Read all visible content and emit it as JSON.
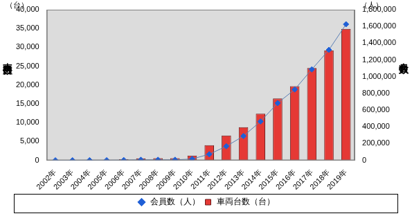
{
  "chart_data": {
    "type": "bar",
    "categories": [
      "2002年",
      "2003年",
      "2004年",
      "2005年",
      "2006年",
      "2007年",
      "2008年",
      "2009年",
      "2010年",
      "2011年",
      "2012年",
      "2013年",
      "2014年",
      "2015年",
      "2016年",
      "2017年",
      "2018年",
      "2019年"
    ],
    "series": [
      {
        "name": "車両台数（台）",
        "type": "bar",
        "color": "#e53935",
        "values": [
          21,
          42,
          86,
          118,
          294,
          510,
          563,
          563,
          1265,
          4000,
          6600,
          8800,
          12400,
          16400,
          19700,
          24500,
          29200,
          34900
        ]
      },
      {
        "name": "会員数（人）",
        "type": "line",
        "axis": "y2",
        "color": "#1f5fd6",
        "marker": "diamond",
        "values": [
          50,
          500,
          1700,
          1600,
          3200,
          6400,
          6400,
          6400,
          16200,
          73000,
          168000,
          290000,
          465000,
          684000,
          847000,
          1087000,
          1320000,
          1626000
        ]
      }
    ],
    "y_label": "車両台数",
    "y2_label": "会員数",
    "y_unit": "（台）",
    "y2_unit": "（人）",
    "ylim": [
      0,
      40000
    ],
    "yticks": [
      0,
      {
        "value": 5000,
        "label": "5,000"
      },
      {
        "value": 10000,
        "label": "10,000"
      },
      {
        "value": 15000,
        "label": "15,000"
      },
      {
        "value": 20000,
        "label": "20,000"
      },
      {
        "value": 25000,
        "label": "25,000"
      },
      {
        "value": 30000,
        "label": "30,000"
      },
      {
        "value": 35000,
        "label": "35,000"
      },
      {
        "value": 40000,
        "label": "40,000"
      }
    ],
    "y2lim": [
      0,
      1800000
    ],
    "y2ticks": [
      0,
      {
        "value": 200000,
        "label": "200,000"
      },
      {
        "value": 400000,
        "label": "400,000"
      },
      {
        "value": 600000,
        "label": "600,000"
      },
      {
        "value": 800000,
        "label": "800,000"
      },
      {
        "value": 1000000,
        "label": "1,000,000"
      },
      {
        "value": 1200000,
        "label": "1,200,000"
      },
      {
        "value": 1400000,
        "label": "1,400,000"
      },
      {
        "value": 1600000,
        "label": "1,600,000"
      },
      {
        "value": 1800000,
        "label": "1,800,000"
      }
    ],
    "grid": false,
    "legend": "bottom"
  }
}
